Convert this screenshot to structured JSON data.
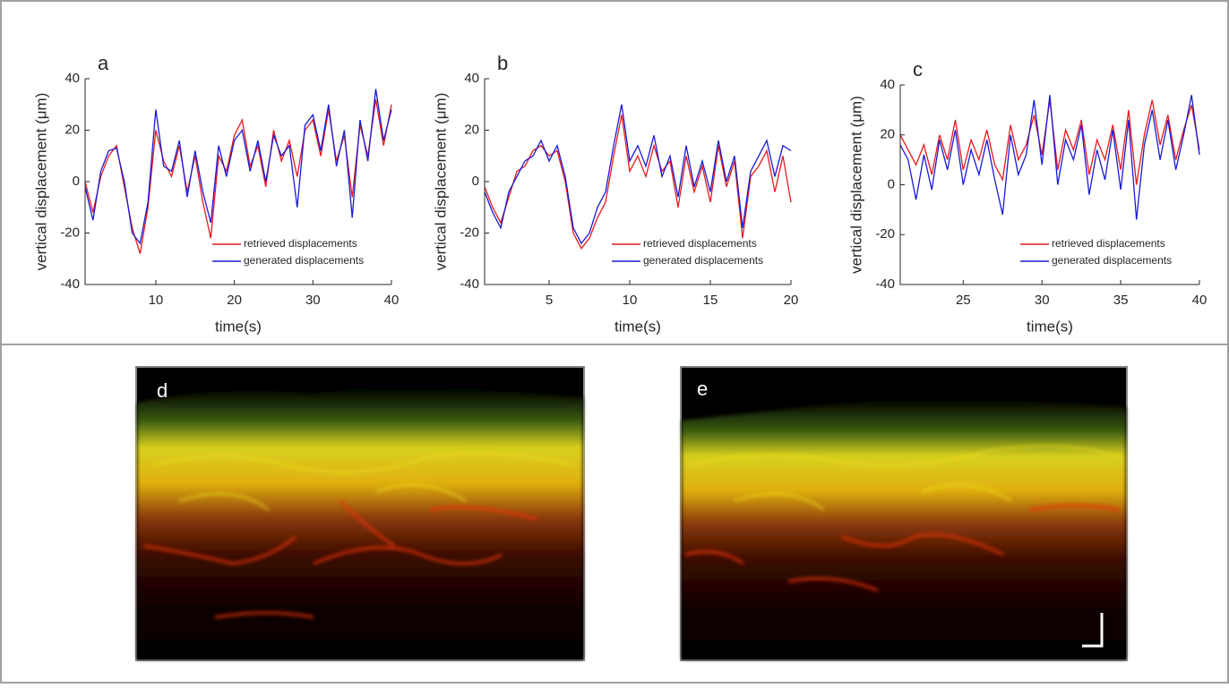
{
  "chart_data": [
    {
      "type": "line",
      "label": "a",
      "ylabel": "vertical displacement (μm)",
      "xlabel": "time(s)",
      "x": [
        1,
        2,
        3,
        4,
        5,
        6,
        7,
        8,
        9,
        10,
        11,
        12,
        13,
        14,
        15,
        16,
        17,
        18,
        19,
        20,
        21,
        22,
        23,
        24,
        25,
        26,
        27,
        28,
        29,
        30,
        31,
        32,
        33,
        34,
        35,
        36,
        37,
        38,
        39,
        40
      ],
      "series": [
        {
          "name": "retrieved displacements",
          "color": "#e8191c",
          "values": [
            0,
            -12,
            2,
            10,
            14,
            -2,
            -18,
            -28,
            -10,
            20,
            8,
            2,
            14,
            -4,
            10,
            -8,
            -22,
            10,
            4,
            18,
            24,
            6,
            14,
            -2,
            20,
            8,
            16,
            2,
            20,
            24,
            10,
            28,
            8,
            18,
            -6,
            22,
            10,
            32,
            14,
            30
          ]
        },
        {
          "name": "generated displacements",
          "color": "#1a1ad6",
          "values": [
            -2,
            -15,
            4,
            12,
            13,
            0,
            -20,
            -24,
            -8,
            28,
            6,
            4,
            16,
            -6,
            12,
            -4,
            -16,
            14,
            2,
            16,
            20,
            4,
            16,
            0,
            18,
            10,
            14,
            -10,
            22,
            26,
            12,
            30,
            6,
            20,
            -14,
            24,
            8,
            36,
            16,
            28
          ]
        }
      ],
      "xlim": [
        1,
        40
      ],
      "xticks": [
        10,
        20,
        30,
        40
      ],
      "ylim": [
        -40,
        40
      ],
      "yticks": [
        -40,
        -20,
        0,
        20,
        40
      ],
      "legend": "lower right"
    },
    {
      "type": "line",
      "label": "b",
      "ylabel": "vertical displacement (μm)",
      "xlabel": "time(s)",
      "x": [
        1,
        1.5,
        2,
        2.5,
        3,
        3.5,
        4,
        4.5,
        5,
        5.5,
        6,
        6.5,
        7,
        7.5,
        8,
        8.5,
        9,
        9.5,
        10,
        10.5,
        11,
        11.5,
        12,
        12.5,
        13,
        13.5,
        14,
        14.5,
        15,
        15.5,
        16,
        16.5,
        17,
        17.5,
        18,
        18.5,
        19,
        19.5,
        20
      ],
      "series": [
        {
          "name": "retrieved displacements",
          "color": "#e8191c",
          "values": [
            -2,
            -10,
            -16,
            -6,
            4,
            6,
            12,
            14,
            10,
            12,
            0,
            -20,
            -26,
            -22,
            -14,
            -8,
            10,
            26,
            4,
            10,
            2,
            14,
            4,
            8,
            -10,
            10,
            -4,
            6,
            -8,
            14,
            -2,
            8,
            -22,
            2,
            6,
            12,
            -4,
            10,
            -8
          ]
        },
        {
          "name": "generated displacements",
          "color": "#1a1ad6",
          "values": [
            -4,
            -12,
            -18,
            -4,
            2,
            8,
            10,
            16,
            8,
            14,
            2,
            -18,
            -24,
            -20,
            -10,
            -4,
            14,
            30,
            8,
            14,
            6,
            18,
            2,
            10,
            -6,
            14,
            -2,
            8,
            -4,
            16,
            0,
            10,
            -18,
            4,
            10,
            16,
            2,
            14,
            12
          ]
        }
      ],
      "xlim": [
        1,
        20
      ],
      "xticks": [
        5,
        10,
        15,
        20
      ],
      "ylim": [
        -40,
        40
      ],
      "yticks": [
        -40,
        -20,
        0,
        20,
        40
      ],
      "legend": "lower right"
    },
    {
      "type": "line",
      "label": "c",
      "ylabel": "vertical displacement (μm)",
      "xlabel": "time(s)",
      "x": [
        21,
        21.5,
        22,
        22.5,
        23,
        23.5,
        24,
        24.5,
        25,
        25.5,
        26,
        26.5,
        27,
        27.5,
        28,
        28.5,
        29,
        29.5,
        30,
        30.5,
        31,
        31.5,
        32,
        32.5,
        33,
        33.5,
        34,
        34.5,
        35,
        35.5,
        36,
        36.5,
        37,
        37.5,
        38,
        38.5,
        39,
        39.5,
        40
      ],
      "series": [
        {
          "name": "retrieved displacements",
          "color": "#e8191c",
          "values": [
            20,
            14,
            8,
            16,
            4,
            20,
            10,
            26,
            6,
            18,
            10,
            22,
            8,
            2,
            24,
            10,
            16,
            28,
            12,
            34,
            6,
            22,
            14,
            26,
            4,
            18,
            10,
            24,
            6,
            30,
            0,
            20,
            34,
            16,
            28,
            10,
            22,
            32,
            14
          ]
        },
        {
          "name": "generated displacements",
          "color": "#1a1ad6",
          "values": [
            16,
            10,
            -6,
            12,
            -2,
            18,
            6,
            22,
            0,
            14,
            4,
            18,
            2,
            -12,
            20,
            4,
            12,
            34,
            8,
            36,
            0,
            18,
            10,
            24,
            -4,
            14,
            2,
            22,
            -2,
            26,
            -14,
            16,
            30,
            10,
            26,
            6,
            20,
            36,
            12
          ]
        }
      ],
      "xlim": [
        21,
        40
      ],
      "xticks": [
        25,
        30,
        35,
        40
      ],
      "ylim": [
        -40,
        40
      ],
      "yticks": [
        -40,
        -20,
        0,
        20,
        40
      ],
      "legend": "lower right"
    }
  ],
  "images": [
    {
      "label": "d"
    },
    {
      "label": "e"
    }
  ]
}
